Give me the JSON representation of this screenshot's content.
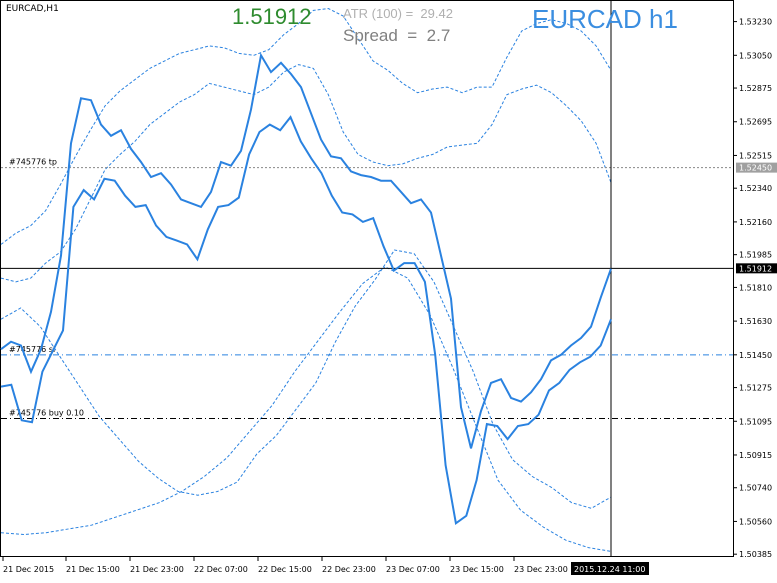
{
  "symbol_label": "EURCAD,H1",
  "price_big": "1.51912",
  "atr_text": "ATR (100) =  29.42",
  "spread_text": "Spread  =  2.7",
  "title_big": "EURCAD h1",
  "colors": {
    "price_big": "#2e8b2e",
    "title": "#3b8ee0",
    "series": "#2a82e0",
    "band": "#2a82e0",
    "atr": "#b0b0b0",
    "spread": "#808080",
    "grid_text": "#000000"
  },
  "orders": [
    {
      "label": "#745776 tp",
      "price": 1.5245,
      "style": "dotted"
    },
    {
      "label": "#745776 sl",
      "price": 1.5145,
      "style": "dashdot-blue"
    },
    {
      "label": "#745776 buy 0.10",
      "price": 1.5111,
      "style": "dashdot-black"
    }
  ],
  "current_price": {
    "label": "1.51912",
    "value": 1.51912
  },
  "tp_price_label": "1.52450",
  "crosshair_time_label": "2015.12.24 11:00",
  "chart_data": {
    "type": "line",
    "title": "EURCAD h1",
    "ylim": [
      1.5037,
      1.5334
    ],
    "y_ticks": [
      "1.53230",
      "1.53050",
      "1.52875",
      "1.52695",
      "1.52515",
      "1.52340",
      "1.52160",
      "1.51985",
      "1.51810",
      "1.51630",
      "1.51450",
      "1.51275",
      "1.51095",
      "1.50915",
      "1.50740",
      "1.50560",
      "1.50385"
    ],
    "x_tick_labels": [
      "21 Dec 2015",
      "21 Dec 15:00",
      "21 Dec 23:00",
      "22 Dec 07:00",
      "22 Dec 15:00",
      "22 Dec 23:00",
      "23 Dec 07:00",
      "23 Dec 15:00",
      "23 Dec 23:00"
    ],
    "grid": false,
    "series": [
      {
        "values": [
          1.5148,
          1.5152,
          1.515,
          1.5136,
          1.5148,
          1.5168,
          1.5198,
          1.5258,
          1.5282,
          1.5281,
          1.5268,
          1.5262,
          1.5265,
          1.5255,
          1.5248,
          1.524,
          1.5242,
          1.5236,
          1.5228,
          1.5226,
          1.5224,
          1.5232,
          1.5248,
          1.5246,
          1.5254,
          1.5276,
          1.5305,
          1.5296,
          1.5301,
          1.5295,
          1.5288,
          1.5274,
          1.526,
          1.5251,
          1.525,
          1.5243,
          1.5241,
          1.524,
          1.5238,
          1.5238,
          1.5232,
          1.5226,
          1.5228,
          1.5221,
          1.5198,
          1.5175,
          1.5117,
          1.5095,
          1.5115,
          1.513,
          1.5132,
          1.5122,
          1.512,
          1.5125,
          1.5132,
          1.5142,
          1.5145,
          1.515,
          1.5154,
          1.516,
          1.5176,
          1.5191
        ]
      },
      {
        "values": [
          1.5128,
          1.5129,
          1.511,
          1.5109,
          1.5136,
          1.5147,
          1.5158,
          1.5224,
          1.5233,
          1.5228,
          1.5239,
          1.5238,
          1.523,
          1.5224,
          1.5225,
          1.5214,
          1.5208,
          1.5206,
          1.5204,
          1.5196,
          1.5212,
          1.5224,
          1.5225,
          1.5229,
          1.5252,
          1.5264,
          1.5268,
          1.5265,
          1.5272,
          1.5259,
          1.525,
          1.5242,
          1.523,
          1.5221,
          1.522,
          1.5216,
          1.5218,
          1.5203,
          1.519,
          1.5194,
          1.5194,
          1.5184,
          1.5145,
          1.5086,
          1.5055,
          1.5059,
          1.5078,
          1.5108,
          1.5107,
          1.51,
          1.5107,
          1.5108,
          1.5113,
          1.5126,
          1.513,
          1.5137,
          1.5141,
          1.5144,
          1.515,
          1.5164
        ]
      },
      {
        "values": [
          1.5204,
          1.521,
          1.5214,
          1.5222,
          1.5236,
          1.5251,
          1.5265,
          1.5278,
          1.5286,
          1.5292,
          1.5298,
          1.5302,
          1.5306,
          1.5308,
          1.531,
          1.5309,
          1.5306,
          1.5305,
          1.5308,
          1.5316,
          1.5322,
          1.5329,
          1.533,
          1.5326,
          1.5314,
          1.5302,
          1.5297,
          1.529,
          1.5285,
          1.5287,
          1.5288,
          1.5285,
          1.5288,
          1.5288,
          1.5304,
          1.5318,
          1.5322,
          1.5324,
          1.5322,
          1.5318,
          1.531,
          1.5297
        ]
      },
      {
        "values": [
          1.5186,
          1.5184,
          1.5186,
          1.5194,
          1.52,
          1.5212,
          1.5228,
          1.5244,
          1.5252,
          1.5259,
          1.5268,
          1.5274,
          1.528,
          1.5284,
          1.529,
          1.5288,
          1.5286,
          1.5284,
          1.5288,
          1.5296,
          1.53,
          1.5298,
          1.5284,
          1.5264,
          1.5252,
          1.5248,
          1.5246,
          1.5247,
          1.525,
          1.5252,
          1.5256,
          1.5257,
          1.5258,
          1.5268,
          1.5284,
          1.5287,
          1.5289,
          1.5285,
          1.5278,
          1.527,
          1.5258,
          1.5237
        ]
      },
      {
        "values": [
          1.5164,
          1.517,
          1.516,
          1.5144,
          1.5128,
          1.5112,
          1.51,
          1.5088,
          1.5079,
          1.5072,
          1.507,
          1.5072,
          1.5077,
          1.5092,
          1.5102,
          1.5116,
          1.513,
          1.5152,
          1.5171,
          1.5185,
          1.5201,
          1.5199,
          1.5184,
          1.516,
          1.5136,
          1.5108,
          1.5089,
          1.508,
          1.5074,
          1.5066,
          1.5063,
          1.5069
        ]
      },
      {
        "values": [
          1.505,
          1.5049,
          1.505,
          1.5052,
          1.5054,
          1.5058,
          1.5062,
          1.5066,
          1.5072,
          1.508,
          1.509,
          1.5104,
          1.5118,
          1.5136,
          1.5152,
          1.5168,
          1.5183,
          1.5192,
          1.5186,
          1.5166,
          1.5138,
          1.5108,
          1.5078,
          1.5062,
          1.5053,
          1.5046,
          1.5042,
          1.504
        ]
      }
    ]
  }
}
